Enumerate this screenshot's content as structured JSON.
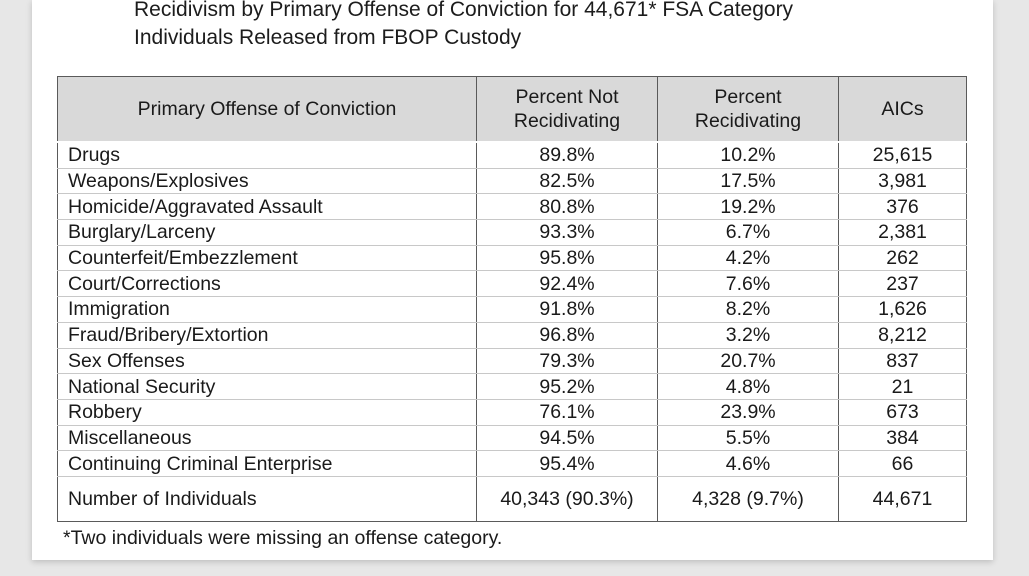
{
  "title_line1": "Recidivism by Primary Offense of Conviction for 44,671* FSA Category",
  "title_line2": "Individuals Released from FBOP Custody",
  "headers": {
    "offense": "Primary Offense of Conviction",
    "not_recid_1": "Percent Not",
    "not_recid_2": "Recidivating",
    "recid_1": "Percent",
    "recid_2": "Recidivating",
    "aics": "AICs"
  },
  "rows": [
    {
      "offense": "Drugs",
      "not_recid": "89.8%",
      "recid": "10.2%",
      "aics": "25,615"
    },
    {
      "offense": "Weapons/Explosives",
      "not_recid": "82.5%",
      "recid": "17.5%",
      "aics": "3,981"
    },
    {
      "offense": "Homicide/Aggravated Assault",
      "not_recid": "80.8%",
      "recid": "19.2%",
      "aics": "376"
    },
    {
      "offense": "Burglary/Larceny",
      "not_recid": "93.3%",
      "recid": "6.7%",
      "aics": "2,381"
    },
    {
      "offense": "Counterfeit/Embezzlement",
      "not_recid": "95.8%",
      "recid": "4.2%",
      "aics": "262"
    },
    {
      "offense": "Court/Corrections",
      "not_recid": "92.4%",
      "recid": "7.6%",
      "aics": "237"
    },
    {
      "offense": "Immigration",
      "not_recid": "91.8%",
      "recid": "8.2%",
      "aics": "1,626"
    },
    {
      "offense": "Fraud/Bribery/Extortion",
      "not_recid": "96.8%",
      "recid": "3.2%",
      "aics": "8,212"
    },
    {
      "offense": "Sex Offenses",
      "not_recid": "79.3%",
      "recid": "20.7%",
      "aics": "837"
    },
    {
      "offense": "National Security",
      "not_recid": "95.2%",
      "recid": "4.8%",
      "aics": "21"
    },
    {
      "offense": "Robbery",
      "not_recid": "76.1%",
      "recid": "23.9%",
      "aics": "673"
    },
    {
      "offense": "Miscellaneous",
      "not_recid": "94.5%",
      "recid": "5.5%",
      "aics": "384"
    },
    {
      "offense": "Continuing Criminal Enterprise",
      "not_recid": "95.4%",
      "recid": "4.6%",
      "aics": "66"
    }
  ],
  "total": {
    "label": "Number of Individuals",
    "not_recid": "40,343 (90.3%)",
    "recid": "4,328 (9.7%)",
    "aics": "44,671"
  },
  "footnote": "*Two individuals were missing an offense category."
}
